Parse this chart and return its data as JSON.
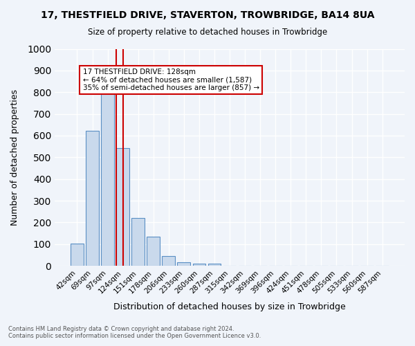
{
  "title": "17, THESTFIELD DRIVE, STAVERTON, TROWBRIDGE, BA14 8UA",
  "subtitle": "Size of property relative to detached houses in Trowbridge",
  "xlabel": "Distribution of detached houses by size in Trowbridge",
  "ylabel": "Number of detached properties",
  "bar_color": "#c9d9ec",
  "bar_edge_color": "#5a8fc4",
  "bg_color": "#f0f4fa",
  "grid_color": "#ffffff",
  "categories": [
    "42sqm",
    "69sqm",
    "97sqm",
    "124sqm",
    "151sqm",
    "178sqm",
    "206sqm",
    "233sqm",
    "260sqm",
    "287sqm",
    "315sqm",
    "342sqm",
    "369sqm",
    "396sqm",
    "424sqm",
    "451sqm",
    "478sqm",
    "505sqm",
    "533sqm",
    "560sqm",
    "587sqm"
  ],
  "values": [
    103,
    623,
    793,
    543,
    222,
    133,
    44,
    18,
    11,
    9,
    0,
    0,
    0,
    0,
    0,
    0,
    0,
    0,
    0,
    0,
    0
  ],
  "ylim": [
    0,
    1000
  ],
  "yticks": [
    0,
    100,
    200,
    300,
    400,
    500,
    600,
    700,
    800,
    900,
    1000
  ],
  "property_line_x": 3,
  "property_line_color": "#cc0000",
  "annotation_text": "17 THESTFIELD DRIVE: 128sqm\n← 64% of detached houses are smaller (1,587)\n35% of semi-detached houses are larger (857) →",
  "annotation_box_color": "#cc0000",
  "footer_line1": "Contains HM Land Registry data © Crown copyright and database right 2024.",
  "footer_line2": "Contains public sector information licensed under the Open Government Licence v3.0."
}
